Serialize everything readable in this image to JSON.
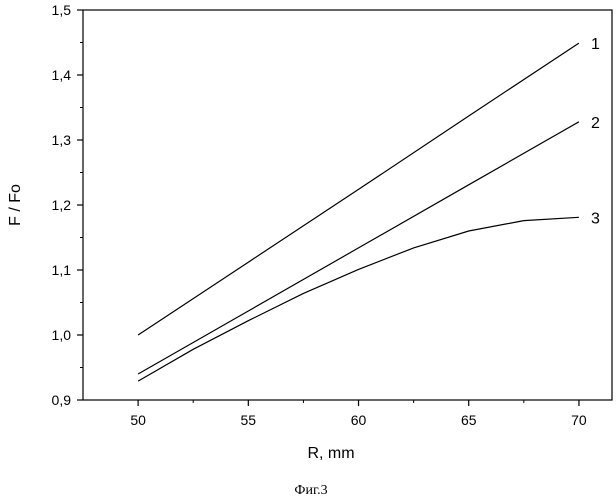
{
  "chart_data": {
    "type": "line",
    "title": "",
    "xlabel": "R, mm",
    "ylabel": "F / Fo",
    "xlim": [
      47.5,
      71.5
    ],
    "ylim": [
      0.9,
      1.5
    ],
    "xticks": [
      50,
      55,
      60,
      65,
      70
    ],
    "xtick_labels": [
      "50",
      "55",
      "60",
      "65",
      "70"
    ],
    "yticks": [
      0.9,
      1.0,
      1.1,
      1.2,
      1.3,
      1.4,
      1.5
    ],
    "ytick_labels": [
      "0,9",
      "1,0",
      "1,1",
      "1,2",
      "1,3",
      "1,4",
      "1,5"
    ],
    "grid": false,
    "series": [
      {
        "label": "1",
        "x": [
          50,
          55,
          60,
          65,
          70
        ],
        "y": [
          1.0,
          1.112,
          1.224,
          1.337,
          1.449
        ]
      },
      {
        "label": "2",
        "x": [
          50,
          55,
          60,
          65,
          70
        ],
        "y": [
          0.94,
          1.037,
          1.134,
          1.231,
          1.328
        ]
      },
      {
        "label": "3",
        "x": [
          50,
          52.5,
          55,
          57.5,
          60,
          62.5,
          65,
          67.5,
          70
        ],
        "y": [
          0.929,
          0.978,
          1.022,
          1.064,
          1.101,
          1.134,
          1.16,
          1.176,
          1.181
        ]
      }
    ]
  },
  "caption": "Фиг.3"
}
